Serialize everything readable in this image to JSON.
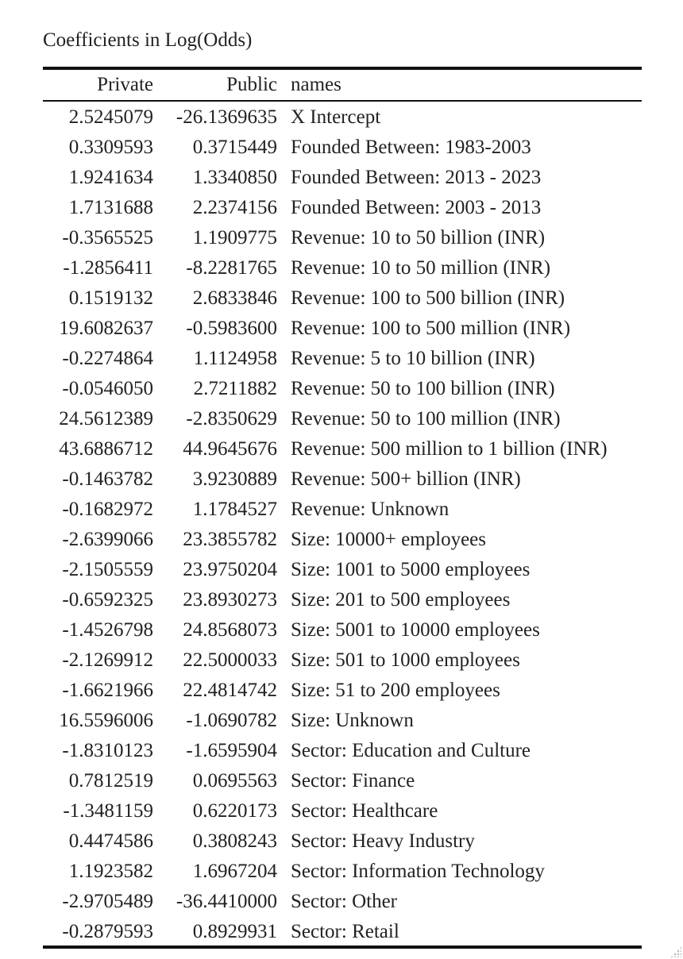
{
  "table": {
    "caption": "Coefficients in Log(Odds)",
    "headers": {
      "private": "Private",
      "public": "Public",
      "names": "names"
    },
    "rows": [
      {
        "private": "2.5245079",
        "public": "-26.1369635",
        "name": "X Intercept"
      },
      {
        "private": "0.3309593",
        "public": "0.3715449",
        "name": "Founded Between: 1983-2003"
      },
      {
        "private": "1.9241634",
        "public": "1.3340850",
        "name": "Founded Between: 2013 - 2023"
      },
      {
        "private": "1.7131688",
        "public": "2.2374156",
        "name": "Founded Between: 2003 - 2013"
      },
      {
        "private": "-0.3565525",
        "public": "1.1909775",
        "name": "Revenue: 10 to 50 billion (INR)"
      },
      {
        "private": "-1.2856411",
        "public": "-8.2281765",
        "name": "Revenue: 10 to 50 million (INR)"
      },
      {
        "private": "0.1519132",
        "public": "2.6833846",
        "name": "Revenue: 100 to 500 billion (INR)"
      },
      {
        "private": "19.6082637",
        "public": "-0.5983600",
        "name": "Revenue: 100 to 500 million (INR)"
      },
      {
        "private": "-0.2274864",
        "public": "1.1124958",
        "name": "Revenue: 5 to 10 billion (INR)"
      },
      {
        "private": "-0.0546050",
        "public": "2.7211882",
        "name": "Revenue: 50 to 100 billion (INR)"
      },
      {
        "private": "24.5612389",
        "public": "-2.8350629",
        "name": "Revenue: 50 to 100 million (INR)"
      },
      {
        "private": "43.6886712",
        "public": "44.9645676",
        "name": "Revenue: 500 million to 1 billion (INR)"
      },
      {
        "private": "-0.1463782",
        "public": "3.9230889",
        "name": "Revenue: 500+ billion (INR)"
      },
      {
        "private": "-0.1682972",
        "public": "1.1784527",
        "name": "Revenue: Unknown"
      },
      {
        "private": "-2.6399066",
        "public": "23.3855782",
        "name": "Size: 10000+ employees"
      },
      {
        "private": "-2.1505559",
        "public": "23.9750204",
        "name": "Size: 1001 to 5000 employees"
      },
      {
        "private": "-0.6592325",
        "public": "23.8930273",
        "name": "Size: 201 to 500 employees"
      },
      {
        "private": "-1.4526798",
        "public": "24.8568073",
        "name": "Size: 5001 to 10000 employees"
      },
      {
        "private": "-2.1269912",
        "public": "22.5000033",
        "name": "Size: 501 to 1000 employees"
      },
      {
        "private": "-1.6621966",
        "public": "22.4814742",
        "name": "Size: 51 to 200 employees"
      },
      {
        "private": "16.5596006",
        "public": "-1.0690782",
        "name": "Size: Unknown"
      },
      {
        "private": "-1.8310123",
        "public": "-1.6595904",
        "name": "Sector: Education and Culture"
      },
      {
        "private": "0.7812519",
        "public": "0.0695563",
        "name": "Sector: Finance"
      },
      {
        "private": "-1.3481159",
        "public": "0.6220173",
        "name": "Sector: Healthcare"
      },
      {
        "private": "0.4474586",
        "public": "0.3808243",
        "name": "Sector: Heavy Industry"
      },
      {
        "private": "1.1923582",
        "public": "1.6967204",
        "name": "Sector: Information Technology"
      },
      {
        "private": "-2.9705489",
        "public": "-36.4410000",
        "name": "Sector: Other"
      },
      {
        "private": "-0.2879593",
        "public": "0.8929931",
        "name": "Sector: Retail"
      }
    ]
  },
  "icons": {
    "resize_grip": "resize-grip-icon"
  }
}
